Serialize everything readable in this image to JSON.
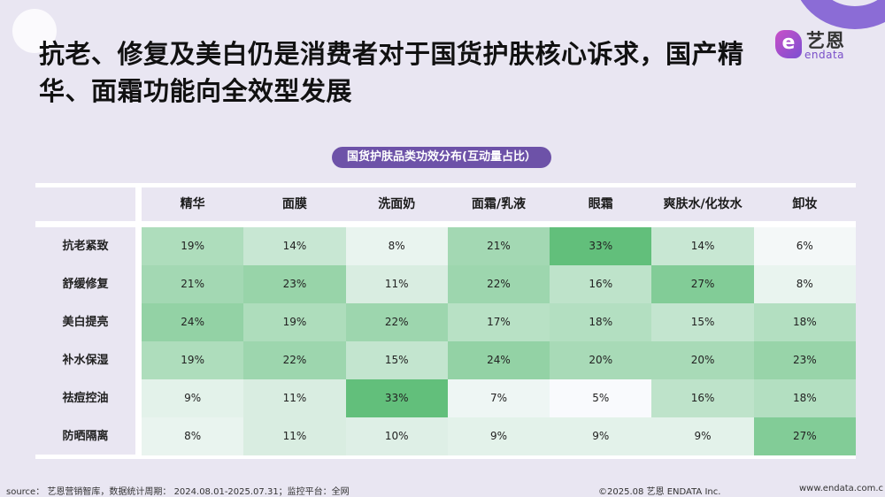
{
  "slide": {
    "title": "抗老、修复及美白仍是消费者对于国货护肤核心诉求，国产精华、面霜功能向全效型发展",
    "logo": {
      "mark": "e",
      "name_cn": "艺恩",
      "name_en": "endata"
    }
  },
  "chart_data": {
    "type": "heatmap",
    "title": "国货护肤品类功效分布(互动量占比）",
    "categories": [
      "精华",
      "面膜",
      "洗面奶",
      "面霜/乳液",
      "眼霜",
      "爽肤水/化妆水",
      "卸妆"
    ],
    "rows": [
      "抗老紧致",
      "舒缓修复",
      "美白提亮",
      "补水保湿",
      "祛痘控油",
      "防晒隔离"
    ],
    "unit": "%",
    "values": [
      [
        19,
        14,
        8,
        21,
        33,
        14,
        6
      ],
      [
        21,
        23,
        11,
        22,
        16,
        27,
        8
      ],
      [
        24,
        19,
        22,
        17,
        18,
        15,
        18
      ],
      [
        19,
        22,
        15,
        24,
        20,
        20,
        23
      ],
      [
        9,
        11,
        33,
        7,
        5,
        16,
        18
      ],
      [
        8,
        11,
        10,
        9,
        9,
        9,
        27
      ]
    ],
    "labels": [
      [
        "19%",
        "14%",
        "8%",
        "21%",
        "33%",
        "14%",
        "6%"
      ],
      [
        "21%",
        "23%",
        "11%",
        "22%",
        "16%",
        "27%",
        "8%"
      ],
      [
        "24%",
        "19%",
        "22%",
        "17%",
        "18%",
        "15%",
        "18%"
      ],
      [
        "19%",
        "22%",
        "15%",
        "24%",
        "20%",
        "20%",
        "23%"
      ],
      [
        "9%",
        "11%",
        "33%",
        "7%",
        "5%",
        "16%",
        "18%"
      ],
      [
        "8%",
        "11%",
        "10%",
        "9%",
        "9%",
        "9%",
        "27%"
      ]
    ],
    "color_scale": {
      "low": "#f9fafd",
      "high": "#62bf7b"
    },
    "value_range": [
      5,
      33
    ]
  },
  "footer": {
    "source": "source： 艺恩营销智库，数据统计周期： 2024.08.01-2025.07.31；监控平台：全网",
    "copyright": "©2025.08  艺恩 ENDATA Inc.",
    "website": "www.endata.com.c"
  }
}
